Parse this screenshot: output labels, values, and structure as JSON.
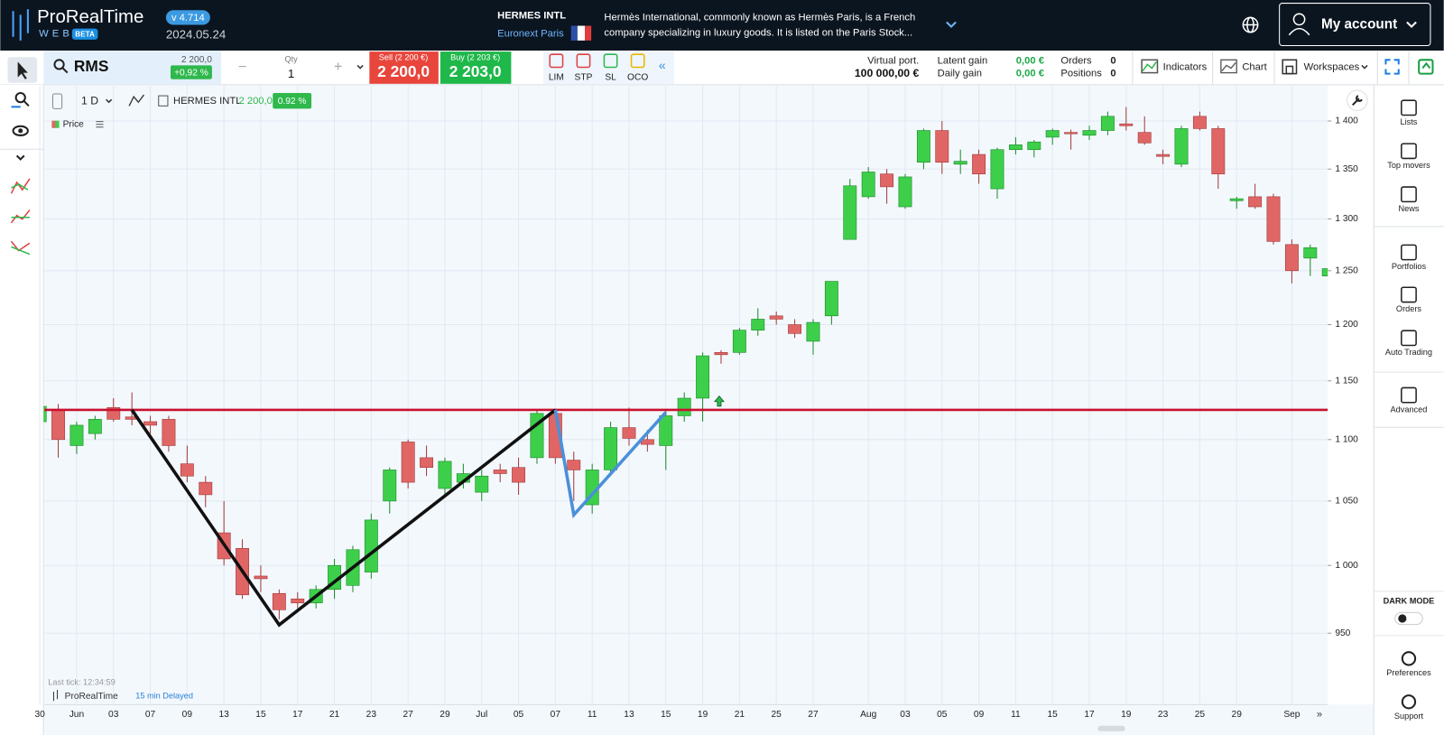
{
  "header": {
    "logo": "ProRealTime",
    "logo_sub": "WEB",
    "beta": "BETA",
    "version": "v 4.714",
    "date": "2024.05.24",
    "instrument": "HERMES INTL",
    "exchange": "Euronext Paris",
    "description_line1": "Hermès International, commonly known as Hermès Paris, is a French",
    "description_line2": "company specializing in luxury goods. It is listed on the Paris Stock...",
    "account": "My account"
  },
  "toolbar": {
    "symbol": "RMS",
    "price": "2 200,0",
    "change": "+0,92 %",
    "qty_label": "Qty",
    "qty": "1",
    "sell_label": "Sell (2 200 €)",
    "sell_price": "2 200,0",
    "buy_label": "Buy (2 203 €)",
    "buy_price": "2 203,0",
    "order_types": [
      "LIM",
      "STP",
      "SL",
      "OCO"
    ],
    "virtual_label": "Virtual port.",
    "virtual_value": "100 000,00 €",
    "latent_label": "Latent gain",
    "latent_value": "0,00 €",
    "daily_label": "Daily gain",
    "daily_value": "0,00 €",
    "orders_label": "Orders",
    "orders_value": "0",
    "positions_label": "Positions",
    "positions_value": "0",
    "buttons": [
      "Indicators",
      "Chart",
      "Workspaces"
    ]
  },
  "chart_header": {
    "period": "1 D",
    "name": "HERMES INTL",
    "price": "2 200,0",
    "change": "0.92 %",
    "legend": "Price"
  },
  "chart_footer": {
    "last_tick": "Last tick: 12:34:59",
    "brand": "ProRealTime",
    "delay": "15 min Delayed"
  },
  "sidebar": [
    "Lists",
    "Top movers",
    "News",
    "Portfolios",
    "Orders",
    "Auto Trading",
    "Advanced"
  ],
  "dark_mode": "DARK MODE",
  "sidebar_bottom": [
    "Preferences",
    "Support"
  ],
  "chart": {
    "type": "candlestick",
    "log_scale": true,
    "grid": true,
    "up_color": "#3ecf4a",
    "down_color": "#e06666",
    "categories": [
      "30",
      null,
      "Jun",
      null,
      "03",
      null,
      "07",
      null,
      "09",
      null,
      "13",
      null,
      "15",
      null,
      "17",
      null,
      "21",
      null,
      "23",
      null,
      "27",
      null,
      "29",
      null,
      "Jul",
      null,
      "05",
      null,
      "07",
      null,
      "11",
      null,
      "13",
      null,
      "15",
      null,
      "19",
      null,
      "21",
      null,
      "25",
      null,
      "27",
      null,
      null,
      "Aug",
      null,
      "03",
      null,
      "05",
      null,
      "09",
      null,
      "11",
      null,
      "15",
      null,
      "17",
      null,
      "19",
      null,
      "23",
      null,
      "25",
      null,
      "29",
      null,
      null,
      "Sep",
      null,
      null
    ],
    "open": [
      1115,
      1125,
      1095,
      1105,
      1127,
      1119,
      1115,
      1117,
      1080,
      1065,
      1025,
      1013,
      992,
      979,
      975,
      972,
      982,
      985,
      995,
      1050,
      1098,
      1085,
      1060,
      1065,
      1057,
      1075,
      1077,
      1085,
      1122,
      1083,
      1047,
      1075,
      1110,
      1100,
      1095,
      1120,
      1135,
      1175,
      1175,
      1195,
      1208,
      1200,
      1185,
      1208,
      1280,
      1322,
      1345,
      1312,
      1357,
      1390,
      1355,
      1365,
      1330,
      1370,
      1370,
      1383,
      1388,
      1385,
      1390,
      1397,
      1388,
      1365,
      1355,
      1405,
      1392,
      1318,
      1322,
      1322,
      1275,
      1262,
      1245
    ],
    "close": [
      1128,
      1100,
      1112,
      1117,
      1117,
      1117,
      1112,
      1095,
      1070,
      1055,
      1005,
      978,
      990,
      967,
      972,
      982,
      1000,
      1012,
      1035,
      1075,
      1065,
      1077,
      1082,
      1072,
      1070,
      1072,
      1065,
      1122,
      1085,
      1075,
      1075,
      1110,
      1101,
      1096,
      1120,
      1135,
      1172,
      1173,
      1195,
      1205,
      1205,
      1192,
      1202,
      1240,
      1333,
      1347,
      1332,
      1342,
      1390,
      1357,
      1358,
      1345,
      1370,
      1375,
      1378,
      1390,
      1387,
      1390,
      1405,
      1395,
      1377,
      1363,
      1392,
      1392,
      1345,
      1320,
      1312,
      1278,
      1250,
      1272,
      1252
    ],
    "high": [
      1130,
      1130,
      1115,
      1120,
      1135,
      1140,
      1120,
      1120,
      1095,
      1070,
      1050,
      1020,
      1000,
      982,
      980,
      985,
      1005,
      1015,
      1040,
      1077,
      1100,
      1095,
      1085,
      1080,
      1075,
      1080,
      1085,
      1125,
      1126,
      1090,
      1080,
      1115,
      1127,
      1108,
      1125,
      1140,
      1175,
      1177,
      1197,
      1215,
      1212,
      1205,
      1205,
      1240,
      1340,
      1352,
      1350,
      1345,
      1392,
      1400,
      1370,
      1370,
      1372,
      1383,
      1380,
      1392,
      1391,
      1395,
      1410,
      1415,
      1405,
      1370,
      1395,
      1410,
      1395,
      1322,
      1335,
      1325,
      1280,
      1275,
      1255
    ],
    "low": [
      1110,
      1085,
      1088,
      1100,
      1115,
      1112,
      1105,
      1090,
      1065,
      1045,
      1000,
      975,
      980,
      960,
      968,
      968,
      975,
      980,
      990,
      1040,
      1060,
      1070,
      1055,
      1060,
      1050,
      1065,
      1055,
      1080,
      1080,
      1050,
      1040,
      1070,
      1095,
      1090,
      1075,
      1115,
      1115,
      1165,
      1173,
      1190,
      1200,
      1188,
      1173,
      1200,
      1280,
      1320,
      1315,
      1310,
      1350,
      1345,
      1345,
      1335,
      1320,
      1365,
      1362,
      1375,
      1370,
      1380,
      1385,
      1390,
      1375,
      1355,
      1352,
      1390,
      1330,
      1310,
      1310,
      1275,
      1238,
      1245,
      1230
    ],
    "ylim": [
      900,
      1438
    ],
    "yticks": [
      {
        "value": 950,
        "label": "950"
      },
      {
        "value": 1000,
        "label": "1 000"
      },
      {
        "value": 1050,
        "label": "1 050"
      },
      {
        "value": 1100,
        "label": "1 100"
      },
      {
        "value": 1150,
        "label": "1 150"
      },
      {
        "value": 1200,
        "label": "1 200"
      },
      {
        "value": 1250,
        "label": "1 250"
      },
      {
        "value": 1300,
        "label": "1 300"
      },
      {
        "value": 1350,
        "label": "1 350"
      },
      {
        "value": 1400,
        "label": "1 400"
      }
    ],
    "level_line": {
      "value": 1125,
      "color": "#c8102e"
    },
    "trendlines": [
      {
        "color": "#111111",
        "x": [
          5,
          13,
          28
        ],
        "values": [
          1125,
          956,
          1125
        ]
      },
      {
        "color": "#4a90d9",
        "x": [
          28,
          29,
          34
        ],
        "values": [
          1125,
          1039,
          1123
        ]
      }
    ]
  }
}
